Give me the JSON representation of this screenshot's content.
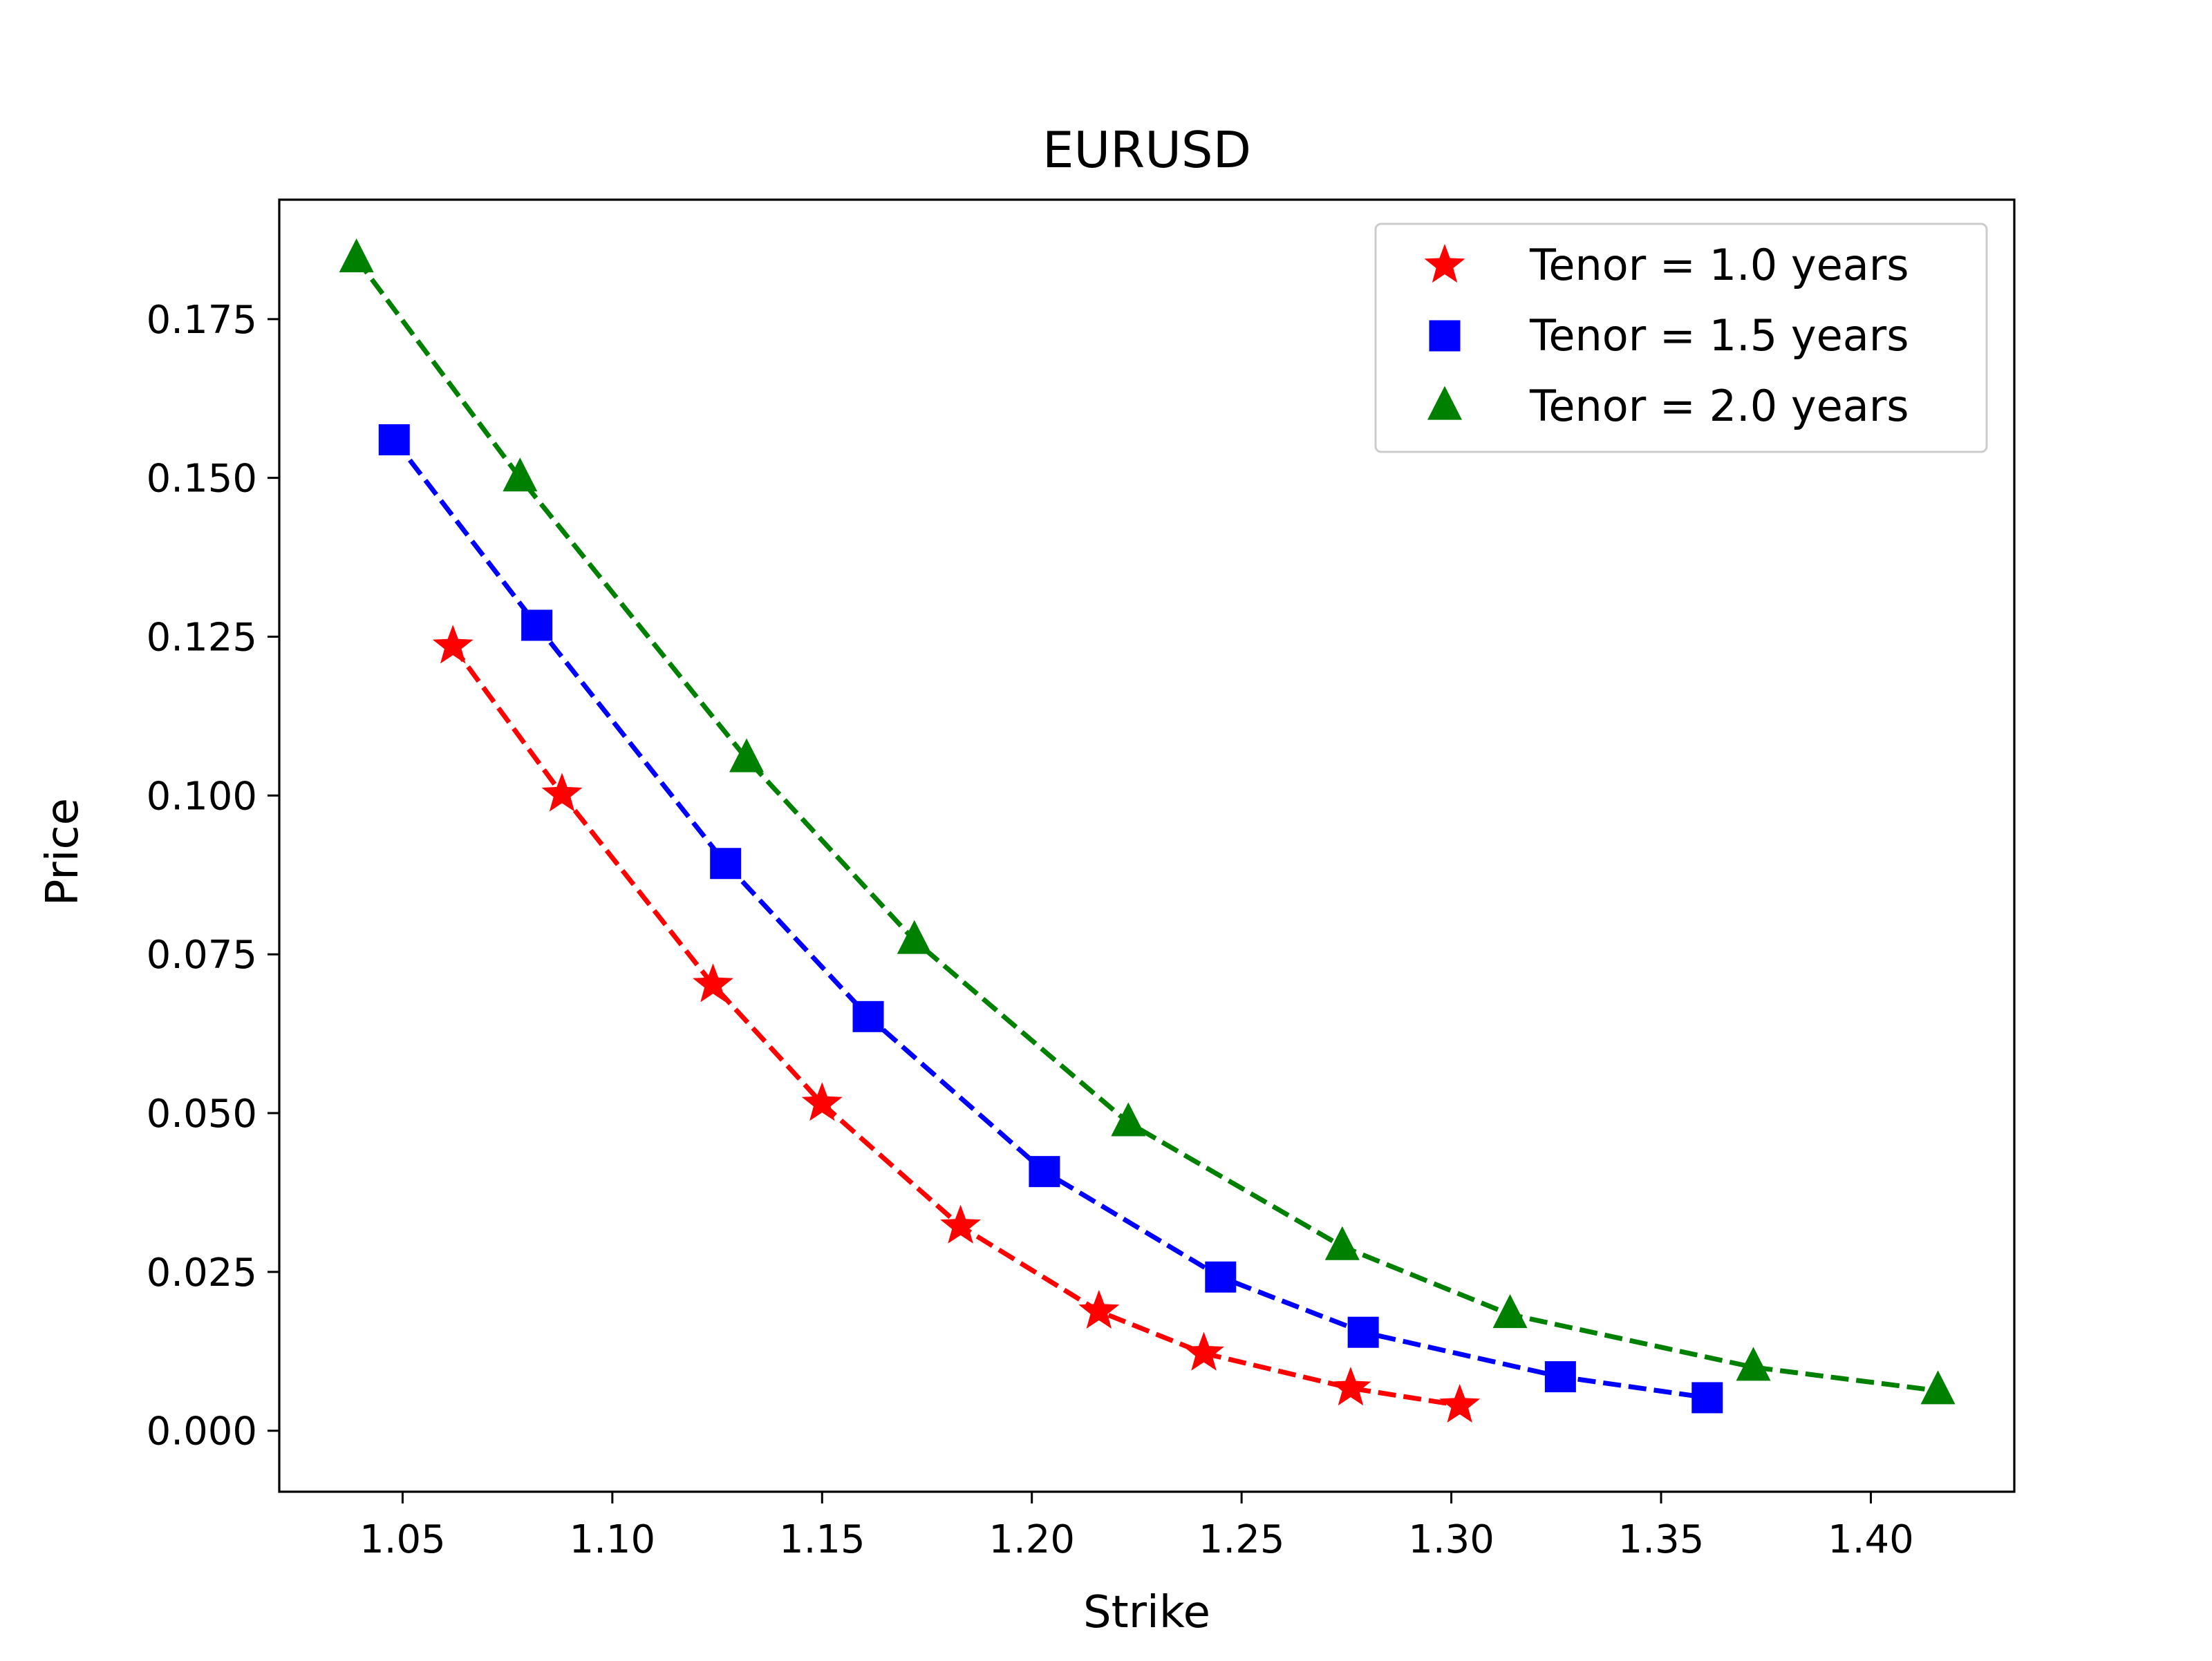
{
  "chart_data": {
    "type": "line",
    "title": "EURUSD",
    "xlabel": "Strike",
    "ylabel": "Price",
    "xlim": [
      1.0206,
      1.4342
    ],
    "ylim": [
      -0.0096,
      0.1938
    ],
    "xticks": [
      1.05,
      1.1,
      1.15,
      1.2,
      1.25,
      1.3,
      1.35,
      1.4
    ],
    "xtick_labels": [
      "1.05",
      "1.10",
      "1.15",
      "1.20",
      "1.25",
      "1.30",
      "1.35",
      "1.40"
    ],
    "yticks": [
      0.0,
      0.025,
      0.05,
      0.075,
      0.1,
      0.125,
      0.15,
      0.175
    ],
    "ytick_labels": [
      "0.000",
      "0.025",
      "0.050",
      "0.075",
      "0.100",
      "0.125",
      "0.150",
      "0.175"
    ],
    "grid": false,
    "legend_position": "top-right",
    "series": [
      {
        "name": "Tenor = 1.0 years",
        "color": "#ff0000",
        "marker": "star",
        "linestyle": "dashed",
        "x": [
          1.062,
          1.088,
          1.124,
          1.15,
          1.183,
          1.216,
          1.241,
          1.276,
          1.302
        ],
        "y": [
          0.1235,
          0.1002,
          0.0702,
          0.0515,
          0.0322,
          0.0188,
          0.0122,
          0.0067,
          0.004
        ]
      },
      {
        "name": "Tenor = 1.5 years",
        "color": "#0000ff",
        "marker": "square",
        "linestyle": "dashed",
        "x": [
          1.048,
          1.082,
          1.127,
          1.161,
          1.203,
          1.245,
          1.279,
          1.326,
          1.361
        ],
        "y": [
          0.156,
          0.1268,
          0.0893,
          0.0652,
          0.0408,
          0.0242,
          0.0155,
          0.0085,
          0.0052
        ]
      },
      {
        "name": "Tenor = 2.0 years",
        "color": "#008000",
        "marker": "triangle",
        "linestyle": "dashed",
        "x": [
          1.039,
          1.078,
          1.132,
          1.172,
          1.223,
          1.274,
          1.314,
          1.372,
          1.416
        ],
        "y": [
          0.1845,
          0.15,
          0.1058,
          0.0772,
          0.0485,
          0.029,
          0.0183,
          0.01,
          0.0063
        ]
      }
    ]
  }
}
